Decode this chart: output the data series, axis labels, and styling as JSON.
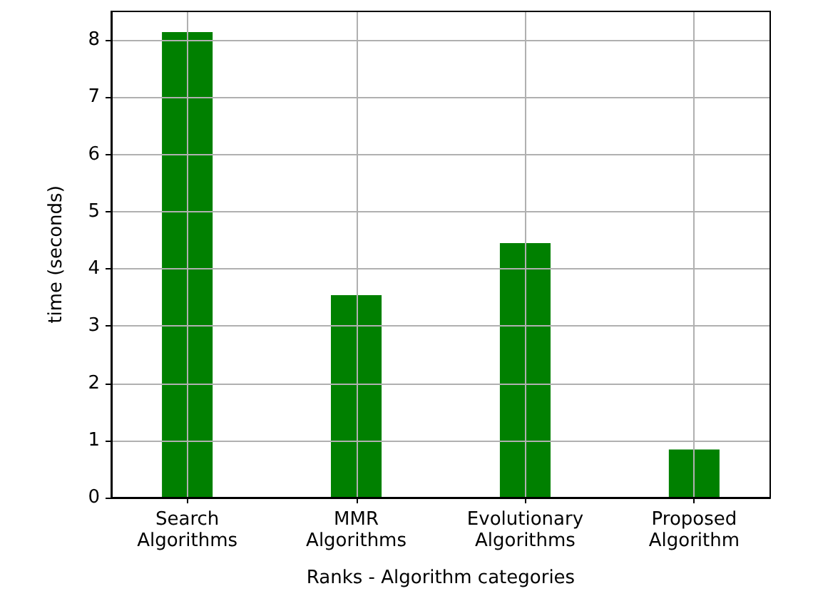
{
  "chart_data": {
    "type": "bar",
    "xlabel": "Ranks - Algorithm categories",
    "ylabel": "time (seconds)",
    "categories": [
      "Search Algorithms",
      "MMR Algorithms",
      "Evolutionary Algorithms",
      "Proposed Algorithm"
    ],
    "values": [
      8.14,
      3.54,
      4.45,
      0.84
    ],
    "color": "#008000",
    "ylim": [
      0,
      8.5
    ],
    "yticks": [
      0,
      1,
      2,
      3,
      4,
      5,
      6,
      7,
      8
    ],
    "grid": true
  }
}
